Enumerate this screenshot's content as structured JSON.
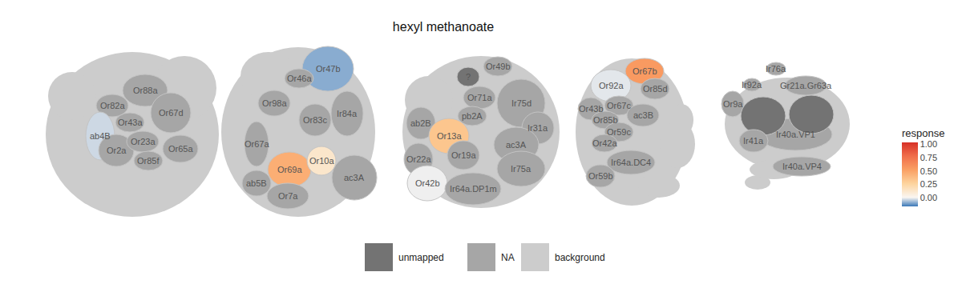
{
  "chart_data": {
    "type": "glomerulus_map",
    "title": "hexyl methanoate",
    "colorbar": {
      "title": "response",
      "range": [
        -0.17,
        1.04
      ],
      "ticks": [
        {
          "value": 0,
          "label": "0.00"
        },
        {
          "value": 0.25,
          "label": "0.25"
        },
        {
          "value": 0.5,
          "label": "0.50"
        },
        {
          "value": 0.75,
          "label": "0.75"
        },
        {
          "value": 1,
          "label": "1.00"
        }
      ]
    },
    "legend_items": [
      {
        "name": "unmapped",
        "color": "#737373"
      },
      {
        "name": "NA",
        "color": "#a6a6a6"
      },
      {
        "name": "background",
        "color": "#cccccc"
      }
    ],
    "panels": [
      [
        {
          "name": "Or88a",
          "value": null,
          "class": "NA"
        },
        {
          "name": "Or82a",
          "value": null,
          "class": "NA"
        },
        {
          "name": "Or67d",
          "value": null,
          "class": "NA"
        },
        {
          "name": "ab4B",
          "value": -0.04
        },
        {
          "name": "Or43a",
          "value": null,
          "class": "NA"
        },
        {
          "name": "Or2a",
          "value": null,
          "class": "NA"
        },
        {
          "name": "Or23a",
          "value": null,
          "class": "NA"
        },
        {
          "name": "Or85f",
          "value": null,
          "class": "NA"
        },
        {
          "name": "Or65a",
          "value": null,
          "class": "NA"
        }
      ],
      [
        {
          "name": "Or47b",
          "value": -0.1
        },
        {
          "name": "Or46a",
          "value": null,
          "class": "NA"
        },
        {
          "name": "Or98a",
          "value": null,
          "class": "NA"
        },
        {
          "name": "Or83c",
          "value": null,
          "class": "NA"
        },
        {
          "name": "Ir84a",
          "value": null,
          "class": "NA"
        },
        {
          "name": "Or67a",
          "value": null,
          "class": "NA"
        },
        {
          "name": "Or69a",
          "value": 0.45
        },
        {
          "name": "Or10a",
          "value": 0.12
        },
        {
          "name": "ac3A",
          "value": null,
          "class": "NA"
        },
        {
          "name": "ab5B",
          "value": null,
          "class": "NA"
        },
        {
          "name": "Or7a",
          "value": null,
          "class": "NA"
        }
      ],
      [
        {
          "name": "?",
          "value": null,
          "class": "unmapped"
        },
        {
          "name": "Or49b",
          "value": null,
          "class": "NA"
        },
        {
          "name": "Or71a",
          "value": null,
          "class": "NA"
        },
        {
          "name": "Ir75d",
          "value": null,
          "class": "NA"
        },
        {
          "name": "ab2B",
          "value": null,
          "class": "NA"
        },
        {
          "name": "pb2A",
          "value": null,
          "class": "NA"
        },
        {
          "name": "Ir31a",
          "value": null,
          "class": "NA"
        },
        {
          "name": "Or13a",
          "value": 0.33
        },
        {
          "name": "Or19a",
          "value": null,
          "class": "NA"
        },
        {
          "name": "ac3A",
          "value": null,
          "class": "NA"
        },
        {
          "name": "Or22a",
          "value": null,
          "class": "NA"
        },
        {
          "name": "Or42b",
          "value": -0.01
        },
        {
          "name": "Ir75a",
          "value": null,
          "class": "NA"
        },
        {
          "name": "Ir64a.DP1m",
          "value": null,
          "class": "NA"
        }
      ],
      [
        {
          "name": "Or67b",
          "value": 0.55
        },
        {
          "name": "Or92a",
          "value": -0.02
        },
        {
          "name": "Or85d",
          "value": null,
          "class": "NA"
        },
        {
          "name": "Or43b",
          "value": null,
          "class": "NA"
        },
        {
          "name": "Or67c",
          "value": null,
          "class": "NA"
        },
        {
          "name": "Or85b",
          "value": null,
          "class": "NA"
        },
        {
          "name": "ac3B",
          "value": null,
          "class": "NA"
        },
        {
          "name": "Or59c",
          "value": null,
          "class": "NA"
        },
        {
          "name": "Or42a",
          "value": null,
          "class": "NA"
        },
        {
          "name": "Ir64a.DC4",
          "value": null,
          "class": "NA"
        },
        {
          "name": "Or59b",
          "value": null,
          "class": "NA"
        }
      ],
      [
        {
          "name": "Ir76a",
          "value": null,
          "class": "NA"
        },
        {
          "name": "Ir92a",
          "value": null,
          "class": "NA"
        },
        {
          "name": "Gr21a.Gr63a",
          "value": null,
          "class": "NA"
        },
        {
          "name": "Or9a",
          "value": null,
          "class": "NA"
        },
        {
          "name": "Ir40a.VP1",
          "value": null,
          "class": "NA"
        },
        {
          "name": null,
          "value": null,
          "class": "unmapped"
        },
        {
          "name": null,
          "value": null,
          "class": "unmapped"
        },
        {
          "name": "Ir41a",
          "value": null,
          "class": "NA"
        },
        {
          "name": "Ir40a.VP4",
          "value": null,
          "class": "NA"
        }
      ]
    ]
  }
}
